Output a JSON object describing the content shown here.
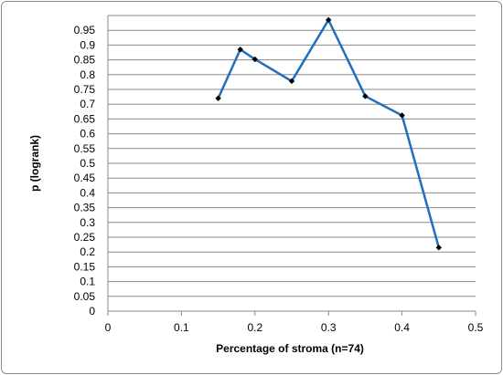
{
  "chart_data": {
    "type": "line",
    "title": "",
    "xlabel": "Percentage of stroma (n=74)",
    "ylabel": "p (logrank)",
    "xlim": [
      0,
      0.5
    ],
    "ylim": [
      0,
      1.0
    ],
    "x_ticks": [
      0,
      0.1,
      0.2,
      0.3,
      0.4,
      0.5
    ],
    "y_ticks": [
      0,
      0.05,
      0.1,
      0.15,
      0.2,
      0.25,
      0.3,
      0.35,
      0.4,
      0.45,
      0.5,
      0.55,
      0.6,
      0.65,
      0.7,
      0.75,
      0.8,
      0.85,
      0.9,
      0.95
    ],
    "grid": "horizontal",
    "legend": "none",
    "series": [
      {
        "color": "#1f6fbf",
        "x": [
          0.15,
          0.18,
          0.2,
          0.25,
          0.3,
          0.35,
          0.4,
          0.45
        ],
        "y": [
          0.72,
          0.885,
          0.852,
          0.778,
          0.985,
          0.727,
          0.662,
          0.215
        ]
      }
    ]
  }
}
